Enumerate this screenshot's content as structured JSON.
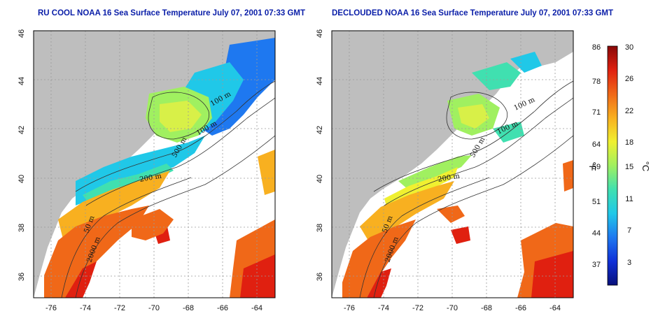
{
  "panels": [
    {
      "title": "RU COOL NOAA 16 Sea Surface Temperature July 07, 2001 07:33 GMT",
      "variant": "cloudy"
    },
    {
      "title": "DECLOUDED NOAA 16 Sea Surface Temperature July 07, 2001 07:33 GMT",
      "variant": "declouded"
    }
  ],
  "axes": {
    "lat_ticks": [
      "46",
      "44",
      "42",
      "40",
      "38",
      "36"
    ],
    "lon_ticks": [
      "-76",
      "-74",
      "-72",
      "-70",
      "-68",
      "-66",
      "-64"
    ]
  },
  "contour_labels": {
    "c100a": "100 m",
    "c100b": "100 m",
    "c500": "500 m",
    "c200": "200 m",
    "c50": "50 m",
    "c2000": "2000 m"
  },
  "colorbar": {
    "f_ticks": [
      "86",
      "78",
      "71",
      "64",
      "59",
      "51",
      "44",
      "37"
    ],
    "c_ticks": [
      "30",
      "26",
      "22",
      "18",
      "15",
      "11",
      "7",
      "3"
    ],
    "f_unit": "°F",
    "c_unit": "°C",
    "colors": [
      "#08107a",
      "#1030d8",
      "#1e78f0",
      "#20c8e8",
      "#40e0b0",
      "#a0f060",
      "#f0f030",
      "#f8b020",
      "#f06818",
      "#e02010",
      "#880808"
    ]
  },
  "colors": {
    "land": "#bebebe",
    "cloud": "#ffffff",
    "title": "#0a1ea8"
  }
}
